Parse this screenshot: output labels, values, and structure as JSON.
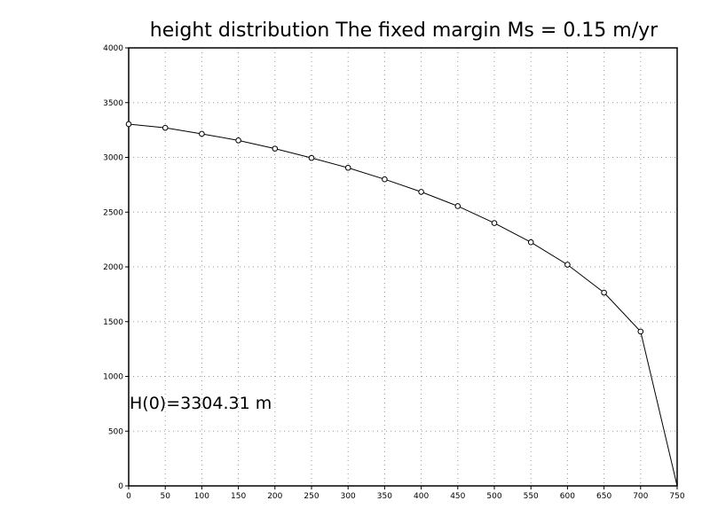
{
  "chart_data": {
    "type": "line",
    "title": "height distribution The fixed margin Ms = 0.15 m/yr",
    "xlabel": "",
    "ylabel": "",
    "xlim": [
      0,
      750
    ],
    "ylim": [
      0,
      4000
    ],
    "x_ticks": [
      "0",
      "50",
      "100",
      "150",
      "200",
      "250",
      "300",
      "350",
      "400",
      "450",
      "500",
      "550",
      "600",
      "650",
      "700",
      "750"
    ],
    "y_ticks": [
      "0",
      "500",
      "1000",
      "1500",
      "2000",
      "2500",
      "3000",
      "3500",
      "4000"
    ],
    "grid": true,
    "annotation": "H(0)=3304.31 m",
    "series": [
      {
        "x": [
          0,
          50,
          100,
          150,
          200,
          250,
          300,
          350,
          400,
          450,
          500,
          550,
          600,
          650,
          700,
          750
        ],
        "y": [
          3304,
          3270,
          3215,
          3155,
          3080,
          2995,
          2905,
          2800,
          2685,
          2555,
          2400,
          2225,
          2020,
          1765,
          1410,
          0
        ]
      }
    ]
  }
}
